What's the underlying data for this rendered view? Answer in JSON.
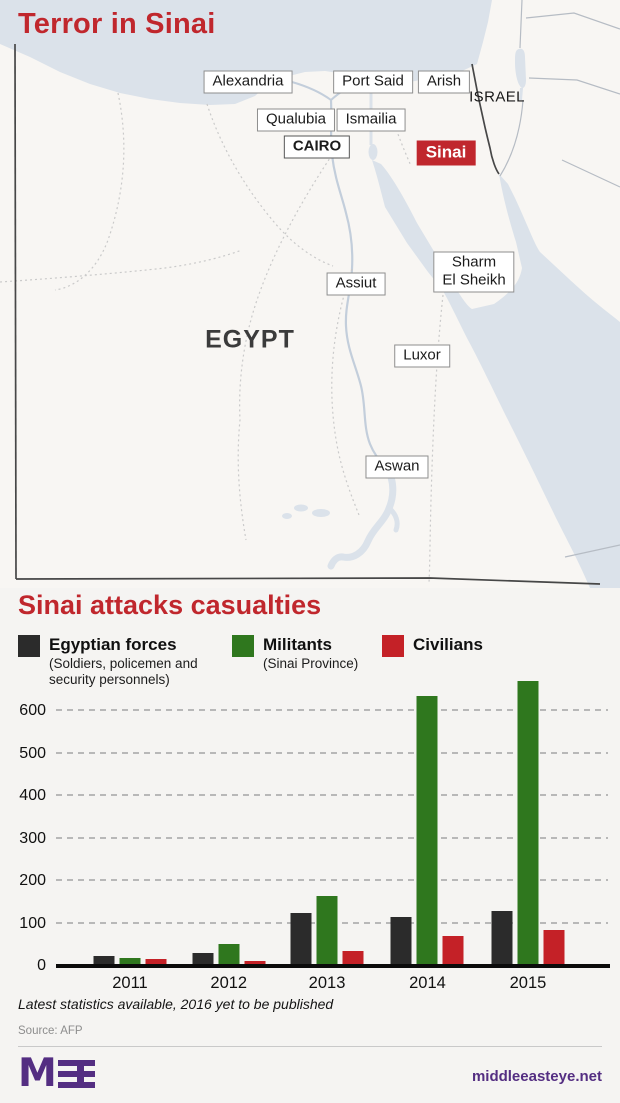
{
  "title": "Terror in Sinai",
  "theme": {
    "page_bg": "#f5f4f2",
    "red": "#c0272d",
    "purple": "#542e82",
    "sea": "#dbe2ea",
    "land": "#f8f6f3",
    "border_dark": "#474747",
    "border_light": "#b6bcc4",
    "dashed_line": "#cacaca",
    "river": "#c3cedb"
  },
  "map": {
    "labels": {
      "alexandria": "Alexandria",
      "port_said": "Port Said",
      "arish": "Arish",
      "israel": "ISRAEL",
      "qualubia": "Qualubia",
      "ismailia": "Ismailia",
      "cairo": "CAIRO",
      "sinai": "Sinai",
      "sharm_line1": "Sharm",
      "sharm_line2": "El Sheikh",
      "assiut": "Assiut",
      "egypt": "EGYPT",
      "luxor": "Luxor",
      "aswan": "Aswan"
    }
  },
  "chart": {
    "title": "Sinai attacks casualties",
    "legend": [
      {
        "label": "Egyptian forces",
        "sublabel": "(Soldiers, policemen and security personnels)",
        "color": "#2b2b2b"
      },
      {
        "label": "Militants",
        "sublabel": "(Sinai Province)",
        "color": "#2f771e"
      },
      {
        "label": "Civilians",
        "sublabel": "",
        "color": "#c42127"
      }
    ],
    "footnote": "Latest statistics available, 2016 yet to be published",
    "source": "Source: AFP"
  },
  "chart_data": {
    "type": "bar",
    "title": "Sinai attacks casualties",
    "categories": [
      "2011",
      "2012",
      "2013",
      "2014",
      "2015"
    ],
    "series": [
      {
        "name": "Egyptian forces",
        "color": "#2b2b2b",
        "values": [
          18,
          27,
          120,
          110,
          125
        ]
      },
      {
        "name": "Militants",
        "color": "#2f771e",
        "values": [
          15,
          47,
          160,
          630,
          665
        ]
      },
      {
        "name": "Civilians",
        "color": "#c42127",
        "values": [
          12,
          8,
          30,
          65,
          80
        ]
      }
    ],
    "xlabel": "",
    "ylabel": "",
    "yticks": [
      0,
      100,
      200,
      300,
      400,
      500,
      600
    ],
    "ylim": [
      0,
      682
    ],
    "grid": "horizontal-dashed",
    "legend_position": "top"
  },
  "footer": {
    "logo_text": "M",
    "site": "middleeasteye.net"
  }
}
